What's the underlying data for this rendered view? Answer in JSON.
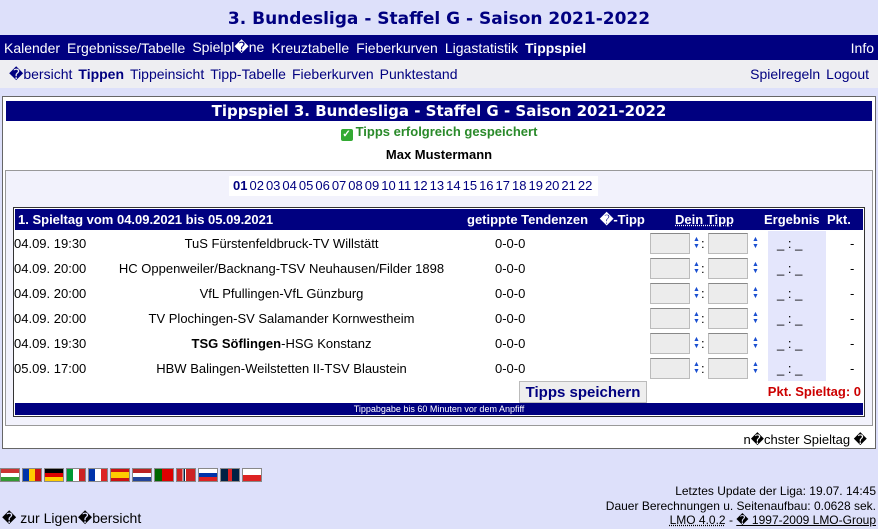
{
  "title": "3. Bundesliga - Staffel G - Saison 2021-2022",
  "nav": {
    "items": [
      "Kalender",
      "Ergebnisse/Tabelle",
      "Spielpl�ne",
      "Kreuztabelle",
      "Fieberkurven",
      "Ligastatistik",
      "Tippspiel"
    ],
    "active": "Tippspiel",
    "info": "Info"
  },
  "subnav": {
    "items": [
      "�bersicht",
      "Tippen",
      "Tippeinsicht",
      "Tipp-Tabelle",
      "Fieberkurven",
      "Punktestand"
    ],
    "active": "Tippen",
    "rules": "Spielregeln",
    "logout": "Logout"
  },
  "main": {
    "header": "Tippspiel 3. Bundesliga - Staffel G - Saison 2021-2022",
    "success": "Tipps erfolgreich gespeichert",
    "user": "Max Mustermann",
    "matchdays": [
      "01",
      "02",
      "03",
      "04",
      "05",
      "06",
      "07",
      "08",
      "09",
      "10",
      "11",
      "12",
      "13",
      "14",
      "15",
      "16",
      "17",
      "18",
      "19",
      "20",
      "21",
      "22"
    ],
    "current_matchday": "01",
    "table": {
      "title": "1. Spieltag vom 04.09.2021 bis 05.09.2021",
      "col_tendencies": "getippte Tendenzen",
      "col_avg": "�-Tipp",
      "col_yourtip": "Dein Tipp",
      "col_result": "Ergebnis",
      "col_points": "Pkt.",
      "rows": [
        {
          "time": "04.09. 19:30",
          "home": "TuS Fürstenfeldbruck",
          "away": "TV Willstätt",
          "tend": "0-0-0",
          "home_tip": "",
          "away_tip": "",
          "result": "_ : _",
          "points": "-"
        },
        {
          "time": "04.09. 20:00",
          "home": "HC Oppenweiler/Backnang",
          "away": "TSV Neuhausen/Filder 1898",
          "tend": "0-0-0",
          "home_tip": "",
          "away_tip": "",
          "result": "_ : _",
          "points": "-"
        },
        {
          "time": "04.09. 20:00",
          "home": "VfL Pfullingen",
          "away": "VfL Günzburg",
          "tend": "0-0-0",
          "home_tip": "",
          "away_tip": "",
          "result": "_ : _",
          "points": "-"
        },
        {
          "time": "04.09. 20:00",
          "home": "TV Plochingen",
          "away": "SV Salamander Kornwestheim",
          "tend": "0-0-0",
          "home_tip": "",
          "away_tip": "",
          "result": "_ : _",
          "points": "-"
        },
        {
          "time": "04.09. 19:30",
          "home": "TSG Söflingen",
          "away": "HSG Konstanz",
          "tend": "0-0-0",
          "home_tip": "",
          "away_tip": "",
          "result": "_ : _",
          "points": "-",
          "home_bold": true
        },
        {
          "time": "05.09. 17:00",
          "home": "HBW Balingen-Weilstetten II",
          "away": "TSV Blaustein",
          "tend": "0-0-0",
          "home_tip": "",
          "away_tip": "",
          "result": "_ : _",
          "points": "-"
        }
      ],
      "save_label": "Tipps speichern",
      "points_total": "Pkt. Spieltag: 0",
      "deadline_note": "Tippabgabe bis 60 Minuten vor dem Anpfiff"
    },
    "next": "n�chster Spieltag �"
  },
  "footer": {
    "last_update": "Letztes Update der Liga: 19.07. 14:45",
    "duration": "Dauer Berechnungen u. Seitenaufbau: 0.0628 sek.",
    "lmo": "LMO 4.0.2",
    "sep": " - ",
    "copyright": "� 1997-2009 LMO-Group",
    "back": "� zur Ligen�bersicht"
  },
  "flags": [
    "hu",
    "ro",
    "de",
    "it",
    "fr",
    "es",
    "nl",
    "pt",
    "no",
    "si",
    "gb",
    "cz"
  ],
  "colors": {
    "navy": "#000080",
    "bg": "#dde0fa",
    "success": "#2a8a2a",
    "points": "#cc0000"
  }
}
